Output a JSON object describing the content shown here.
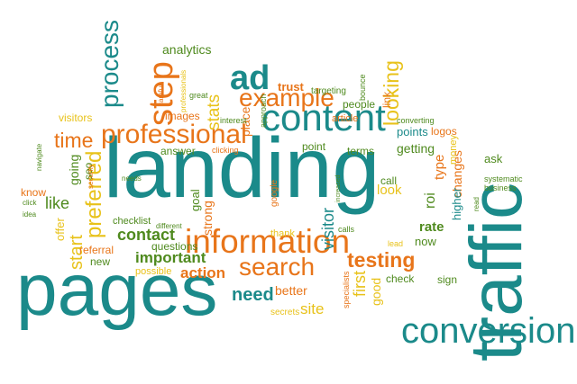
{
  "colors": {
    "teal": "#1b8a8a",
    "orange": "#e8751a",
    "yellow": "#e8c21a",
    "green": "#4f8a1e"
  },
  "words": [
    {
      "id": "landing",
      "text": "landing",
      "color": "teal"
    },
    {
      "id": "pages",
      "text": "pages",
      "color": "teal"
    },
    {
      "id": "traffic",
      "text": "traffic",
      "color": "teal"
    },
    {
      "id": "conversion",
      "text": "conversion",
      "color": "teal"
    },
    {
      "id": "content",
      "text": "content",
      "color": "teal"
    },
    {
      "id": "information",
      "text": "information",
      "color": "orange"
    },
    {
      "id": "search",
      "text": "search",
      "color": "orange"
    },
    {
      "id": "ad",
      "text": "ad",
      "color": "teal"
    },
    {
      "id": "example",
      "text": "example",
      "color": "orange"
    },
    {
      "id": "professional",
      "text": "professional",
      "color": "orange"
    },
    {
      "id": "step",
      "text": "step",
      "color": "orange"
    },
    {
      "id": "process",
      "text": "process",
      "color": "teal"
    },
    {
      "id": "testing",
      "text": "testing",
      "color": "orange"
    },
    {
      "id": "looking",
      "text": "looking",
      "color": "yellow"
    },
    {
      "id": "preferred",
      "text": "preferred",
      "color": "yellow"
    },
    {
      "id": "stats",
      "text": "stats",
      "color": "yellow"
    },
    {
      "id": "time",
      "text": "time",
      "color": "orange"
    },
    {
      "id": "contact",
      "text": "contact",
      "color": "green"
    },
    {
      "id": "need",
      "text": "need",
      "color": "teal"
    },
    {
      "id": "site",
      "text": "site",
      "color": "yellow"
    },
    {
      "id": "visitor",
      "text": "visitor",
      "color": "teal"
    },
    {
      "id": "first",
      "text": "first",
      "color": "yellow"
    },
    {
      "id": "important",
      "text": "important",
      "color": "green"
    },
    {
      "id": "action",
      "text": "action",
      "color": "orange"
    },
    {
      "id": "better",
      "text": "better",
      "color": "orange"
    },
    {
      "id": "analytics",
      "text": "analytics",
      "color": "green"
    },
    {
      "id": "trust",
      "text": "trust",
      "color": "orange"
    },
    {
      "id": "people",
      "text": "people",
      "color": "green"
    },
    {
      "id": "getting",
      "text": "getting",
      "color": "green"
    },
    {
      "id": "points",
      "text": "points",
      "color": "teal"
    },
    {
      "id": "logos",
      "text": "logos",
      "color": "orange"
    },
    {
      "id": "start",
      "text": "start",
      "color": "yellow"
    },
    {
      "id": "like",
      "text": "like",
      "color": "green"
    },
    {
      "id": "going",
      "text": "going",
      "color": "green"
    },
    {
      "id": "offer",
      "text": "offer",
      "color": "yellow"
    },
    {
      "id": "rate",
      "text": "rate",
      "color": "green"
    },
    {
      "id": "now",
      "text": "now",
      "color": "green"
    },
    {
      "id": "roi",
      "text": "roi",
      "color": "green"
    },
    {
      "id": "type",
      "text": "type",
      "color": "orange"
    },
    {
      "id": "changes",
      "text": "changes",
      "color": "orange"
    },
    {
      "id": "higher",
      "text": "higher",
      "color": "teal"
    },
    {
      "id": "look",
      "text": "look",
      "color": "yellow"
    },
    {
      "id": "call",
      "text": "call",
      "color": "green"
    },
    {
      "id": "ask",
      "text": "ask",
      "color": "green"
    },
    {
      "id": "sign",
      "text": "sign",
      "color": "green"
    },
    {
      "id": "check",
      "text": "check",
      "color": "green"
    },
    {
      "id": "good",
      "text": "good",
      "color": "yellow"
    },
    {
      "id": "goal",
      "text": "goal",
      "color": "green"
    },
    {
      "id": "strong",
      "text": "strong",
      "color": "orange"
    },
    {
      "id": "answer",
      "text": "answer",
      "color": "green"
    },
    {
      "id": "point",
      "text": "point",
      "color": "green"
    },
    {
      "id": "terms",
      "text": "terms",
      "color": "green"
    },
    {
      "id": "images",
      "text": "images",
      "color": "orange"
    },
    {
      "id": "place",
      "text": "place",
      "color": "orange"
    },
    {
      "id": "link",
      "text": "link",
      "color": "orange"
    },
    {
      "id": "article",
      "text": "article",
      "color": "orange"
    },
    {
      "id": "targeting",
      "text": "targeting",
      "color": "green"
    },
    {
      "id": "bounce",
      "text": "bounce",
      "color": "green"
    },
    {
      "id": "visitors",
      "text": "visitors",
      "color": "yellow"
    },
    {
      "id": "know",
      "text": "know",
      "color": "orange"
    },
    {
      "id": "seo",
      "text": "seo",
      "color": "green"
    },
    {
      "id": "new",
      "text": "new",
      "color": "green"
    },
    {
      "id": "referral",
      "text": "referral",
      "color": "orange"
    },
    {
      "id": "questions",
      "text": "questions",
      "color": "green"
    },
    {
      "id": "checklist",
      "text": "checklist",
      "color": "green"
    },
    {
      "id": "possible",
      "text": "possible",
      "color": "yellow"
    },
    {
      "id": "thank",
      "text": "thank",
      "color": "yellow"
    },
    {
      "id": "calls",
      "text": "calls",
      "color": "green"
    },
    {
      "id": "lead",
      "text": "lead",
      "color": "yellow"
    },
    {
      "id": "secrets",
      "text": "secrets",
      "color": "yellow"
    },
    {
      "id": "specialists",
      "text": "specialists",
      "color": "orange"
    },
    {
      "id": "systematic",
      "text": "systematic",
      "color": "green"
    },
    {
      "id": "business",
      "text": "business",
      "color": "green"
    },
    {
      "id": "read",
      "text": "read",
      "color": "green"
    },
    {
      "id": "money",
      "text": "money",
      "color": "yellow"
    },
    {
      "id": "converting",
      "text": "converting",
      "color": "green"
    },
    {
      "id": "interest",
      "text": "interest",
      "color": "green"
    },
    {
      "id": "clicking",
      "text": "clicking",
      "color": "orange"
    },
    {
      "id": "approach",
      "text": "approach",
      "color": "green"
    },
    {
      "id": "great",
      "text": "great",
      "color": "green"
    },
    {
      "id": "careful",
      "text": "careful",
      "color": "orange"
    },
    {
      "id": "professionals",
      "text": "professionals",
      "color": "yellow"
    },
    {
      "id": "security",
      "text": "security",
      "color": "orange"
    },
    {
      "id": "needs",
      "text": "needs",
      "color": "green"
    },
    {
      "id": "different",
      "text": "different",
      "color": "green"
    },
    {
      "id": "google",
      "text": "google",
      "color": "orange"
    },
    {
      "id": "click",
      "text": "click",
      "color": "green"
    },
    {
      "id": "idea",
      "text": "idea",
      "color": "green"
    },
    {
      "id": "navigate",
      "text": "navigate",
      "color": "green"
    },
    {
      "id": "increased",
      "text": "increased",
      "color": "green"
    }
  ]
}
